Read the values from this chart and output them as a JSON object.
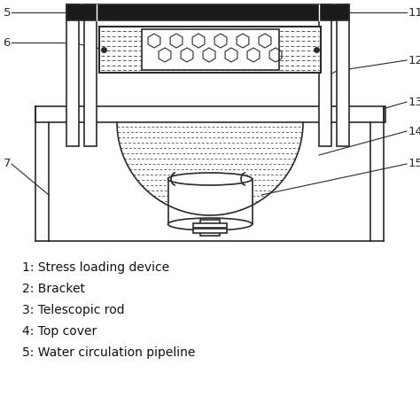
{
  "bg_color": "#ffffff",
  "line_color": "#2a2a2a",
  "legend_items": [
    "1: Stress loading device",
    "2: Bracket",
    "3: Telescopic rod",
    "4: Top cover",
    "5: Water circulation pipeline"
  ],
  "figsize": [
    4.74,
    4.74
  ],
  "dpi": 100
}
